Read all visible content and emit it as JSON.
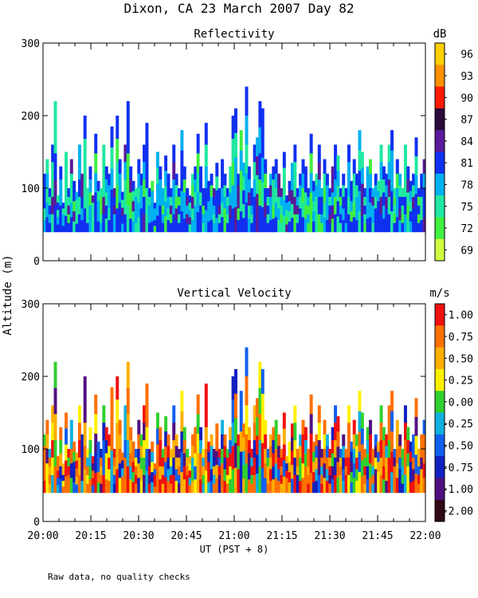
{
  "figure": {
    "title": "Dixon, CA 23 March 2007  Day  82",
    "ylabel": "Altitude (m)",
    "xlabel": "UT  (PST + 8)",
    "footnote": "Raw data, no quality checks"
  },
  "chart_data": [
    {
      "type": "heatmap",
      "title": "Reflectivity",
      "xlabel": "UT  (PST + 8)",
      "ylabel": "Altitude (m)",
      "x_ticks": [
        "20:00",
        "20:15",
        "20:30",
        "20:45",
        "21:00",
        "21:15",
        "21:30",
        "21:45",
        "22:00"
      ],
      "y_ticks": [
        "0",
        "100",
        "200",
        "300"
      ],
      "x_range": [
        "20:00",
        "22:00"
      ],
      "ylim": [
        0,
        300
      ],
      "data_floor_m": 40,
      "colorbar": {
        "unit": "dB",
        "ticks": [
          "96",
          "93",
          "90",
          "87",
          "84",
          "81",
          "78",
          "75",
          "72",
          "69"
        ],
        "colors": [
          "#ffd000",
          "#ff9000",
          "#ff1a00",
          "#2a0a3a",
          "#5a1a9a",
          "#1030f0",
          "#00b0f0",
          "#20e8a0",
          "#40f040",
          "#d0ff40"
        ]
      },
      "echo_top_profile_m": [
        120,
        140,
        100,
        160,
        220,
        90,
        130,
        80,
        150,
        100,
        140,
        110,
        95,
        160,
        120,
        200,
        100,
        130,
        90,
        175,
        110,
        100,
        160,
        130,
        120,
        185,
        100,
        200,
        140,
        95,
        160,
        220,
        130,
        110,
        100,
        140,
        120,
        160,
        190,
        100,
        110,
        80,
        150,
        130,
        100,
        145,
        120,
        100,
        160,
        120,
        100,
        180,
        130,
        100,
        90,
        120,
        130,
        175,
        130,
        100,
        190,
        110,
        120,
        100,
        135,
        100,
        140,
        120,
        100,
        130,
        200,
        210,
        120,
        180,
        135,
        240,
        130,
        100,
        160,
        170,
        220,
        210,
        140,
        100,
        120,
        130,
        140,
        120,
        100,
        150,
        90,
        110,
        135,
        160,
        100,
        120,
        140,
        130,
        100,
        175,
        110,
        120,
        160,
        100,
        140,
        120,
        100,
        130,
        160,
        145,
        100,
        120,
        100,
        160,
        110,
        140,
        120,
        180,
        150,
        100,
        130,
        140,
        100,
        120,
        110,
        160,
        130,
        120,
        160,
        180,
        100,
        140,
        120,
        100,
        160,
        130,
        110,
        120,
        170,
        100,
        120,
        140
      ]
    },
    {
      "type": "heatmap",
      "title": "Vertical Velocity",
      "xlabel": "UT  (PST + 8)",
      "ylabel": "Altitude (m)",
      "x_ticks": [
        "20:00",
        "20:15",
        "20:30",
        "20:45",
        "21:00",
        "21:15",
        "21:30",
        "21:45",
        "22:00"
      ],
      "y_ticks": [
        "0",
        "100",
        "200",
        "300"
      ],
      "x_range": [
        "20:00",
        "22:00"
      ],
      "ylim": [
        0,
        300
      ],
      "data_floor_m": 40,
      "colorbar": {
        "unit": "m/s",
        "ticks": [
          "1.00",
          "0.75",
          "0.50",
          "0.25",
          "0.00",
          "-0.25",
          "-0.50",
          "-0.75",
          "-1.00",
          "-2.00"
        ],
        "colors": [
          "#f01010",
          "#ff7000",
          "#ffb000",
          "#fff000",
          "#30d030",
          "#10b0e0",
          "#1060f0",
          "#1020c0",
          "#501080",
          "#300818"
        ]
      }
    }
  ]
}
